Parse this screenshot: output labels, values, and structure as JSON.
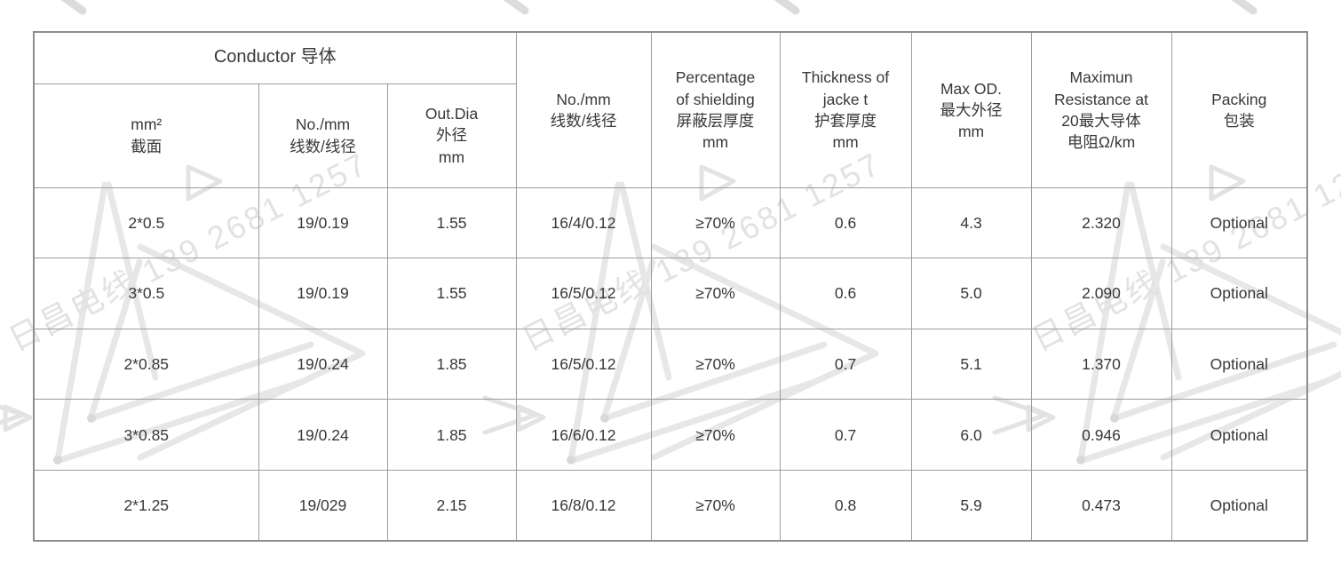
{
  "watermark": {
    "text": "日昌电线 139 2681 1257",
    "company": "日昌电线",
    "phone": "139 2681 1257",
    "color": "#e2e2e2"
  },
  "table": {
    "header": {
      "conductor_group": "Conductor 导体",
      "col_mm2": "mm²\n截面",
      "col_no_mm_conductor": "No./mm\n线数/线径",
      "col_outdia": "Out.Dia\n外径\nmm",
      "col_no_mm_shield": "No./mm\n线数/线径",
      "col_shielding": "Percentage\nof shielding\n屏蔽层厚度\nmm",
      "col_jacket": "Thickness of\njacke t\n护套厚度\nmm",
      "col_maxod": "Max OD.\n最大外径\nmm",
      "col_resistance": "Maximun\nResistance at\n20最大导体\n电阻Ω/km",
      "col_packing": "Packing\n包装"
    },
    "rows": [
      [
        "2*0.5",
        "19/0.19",
        "1.55",
        "16/4/0.12",
        "≥70%",
        "0.6",
        "4.3",
        "2.320",
        "Optional"
      ],
      [
        "3*0.5",
        "19/0.19",
        "1.55",
        "16/5/0.12",
        "≥70%",
        "0.6",
        "5.0",
        "2.090",
        "Optional"
      ],
      [
        "2*0.85",
        "19/0.24",
        "1.85",
        "16/5/0.12",
        "≥70%",
        "0.7",
        "5.1",
        "1.370",
        "Optional"
      ],
      [
        "3*0.85",
        "19/0.24",
        "1.85",
        "16/6/0.12",
        "≥70%",
        "0.7",
        "6.0",
        "0.946",
        "Optional"
      ],
      [
        "2*1.25",
        "19/029",
        "2.15",
        "16/8/0.12",
        "≥70%",
        "0.8",
        "5.9",
        "0.473",
        "Optional"
      ]
    ]
  }
}
